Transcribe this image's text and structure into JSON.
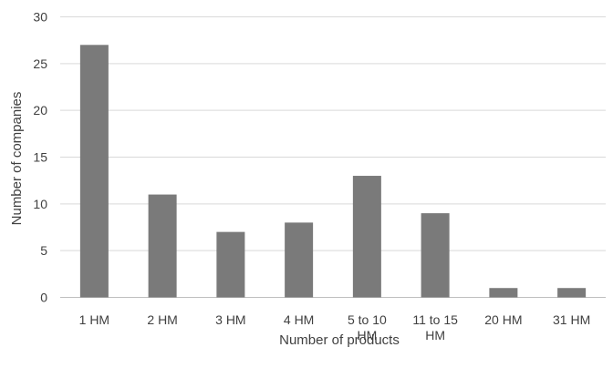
{
  "chart_data": {
    "type": "bar",
    "title": "",
    "categories": [
      "1  HM",
      "2 HM",
      "3 HM",
      "4 HM",
      "5 to 10 HM",
      "11 to 15 HM",
      "20 HM",
      "31 HM"
    ],
    "category_lines": [
      [
        "1  HM"
      ],
      [
        "2 HM"
      ],
      [
        "3 HM"
      ],
      [
        "4 HM"
      ],
      [
        "5 to 10",
        "HM"
      ],
      [
        "11 to 15",
        "HM"
      ],
      [
        "20 HM"
      ],
      [
        "31 HM"
      ]
    ],
    "values": [
      27,
      11,
      7,
      8,
      13,
      9,
      1,
      1
    ],
    "xlabel": "Number of products",
    "ylabel": "Number of companies",
    "ylim": [
      0,
      30
    ],
    "yticks": [
      0,
      5,
      10,
      15,
      20,
      25,
      30
    ],
    "grid": true,
    "legend": "none",
    "colors": {
      "bar": "#7a7a7a",
      "grid": "#d9d9d9",
      "text": "#404040"
    }
  }
}
